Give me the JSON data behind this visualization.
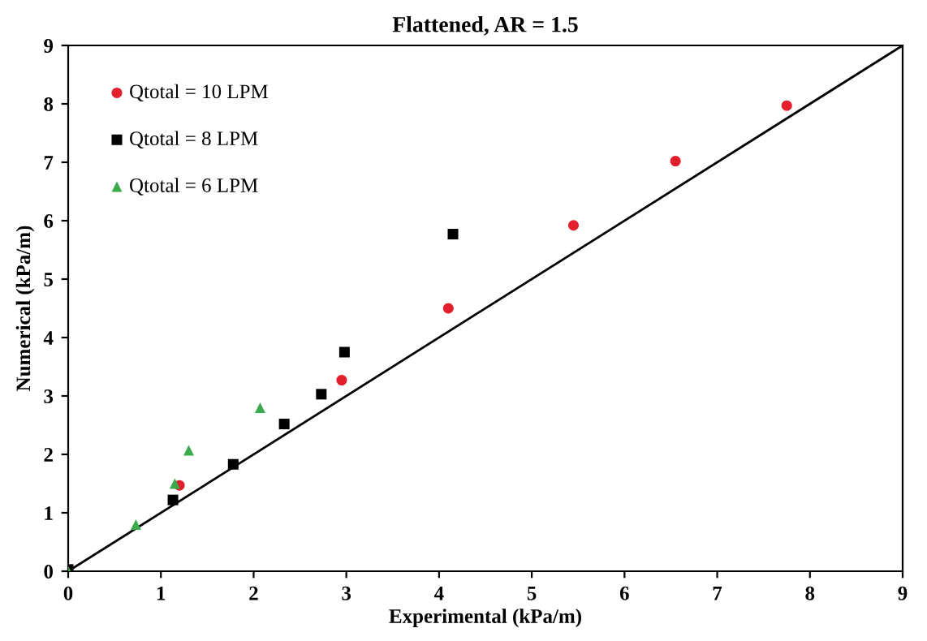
{
  "chart_data": {
    "type": "scatter",
    "title": "Flattened, AR = 1.5",
    "xlabel": "Experimental (kPa/m)",
    "ylabel": "Numerical (kPa/m)",
    "xlim": [
      0,
      9
    ],
    "ylim": [
      0,
      9
    ],
    "xticks": [
      0,
      1,
      2,
      3,
      4,
      5,
      6,
      7,
      8,
      9
    ],
    "yticks": [
      0,
      1,
      2,
      3,
      4,
      5,
      6,
      7,
      8,
      9
    ],
    "grid": false,
    "legend": "top left",
    "series": [
      {
        "name": "Qtotal = 10 LPM",
        "color": "#e31e2d",
        "marker": "circle",
        "x": [
          1.2,
          2.95,
          4.1,
          5.45,
          6.55,
          7.75
        ],
        "values": [
          1.47,
          3.27,
          4.5,
          5.92,
          7.02,
          7.97
        ]
      },
      {
        "name": "Qtotal = 8 LPM",
        "color": "#000000",
        "marker": "square",
        "x": [
          0,
          1.13,
          1.78,
          2.33,
          2.73,
          2.98,
          4.15
        ],
        "values": [
          0.03,
          1.22,
          1.83,
          2.52,
          3.03,
          3.75,
          5.77
        ]
      },
      {
        "name": "Qtotal = 6 LPM",
        "color": "#3aaa4a",
        "marker": "triangle",
        "x": [
          0,
          0.73,
          1.15,
          1.3,
          2.07
        ],
        "values": [
          0,
          0.8,
          1.5,
          2.07,
          2.8
        ]
      },
      {
        "type": "line",
        "color": "#000000",
        "marker": "none",
        "line_style": "solid",
        "x": [
          0,
          9
        ],
        "values": [
          0,
          9
        ]
      }
    ]
  }
}
